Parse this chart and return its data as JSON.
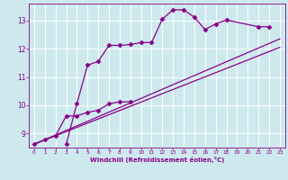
{
  "xlabel": "Windchill (Refroidissement éolien,°C)",
  "xlim": [
    -0.5,
    23.5
  ],
  "ylim": [
    8.5,
    13.6
  ],
  "yticks": [
    9,
    10,
    11,
    12,
    13
  ],
  "xticks": [
    0,
    1,
    2,
    3,
    4,
    5,
    6,
    7,
    8,
    9,
    10,
    11,
    12,
    13,
    14,
    15,
    16,
    17,
    18,
    19,
    20,
    21,
    22,
    23
  ],
  "background_color": "#cde9ee",
  "grid_color": "#ffffff",
  "line_color": "#880088",
  "line1_x": [
    0,
    1,
    2,
    3,
    4,
    5,
    6,
    7,
    8,
    9
  ],
  "line1_y": [
    8.62,
    8.78,
    8.92,
    9.62,
    9.62,
    9.75,
    9.82,
    10.05,
    10.12,
    10.12
  ],
  "line2_x": [
    3,
    4,
    5,
    6,
    7,
    8,
    9,
    10,
    11,
    12,
    13,
    14,
    15,
    16,
    17,
    18,
    21,
    22
  ],
  "line2_y": [
    8.62,
    10.05,
    11.42,
    11.55,
    12.12,
    12.12,
    12.15,
    12.22,
    12.22,
    13.05,
    13.38,
    13.38,
    13.12,
    12.68,
    12.88,
    13.02,
    12.78,
    12.78
  ],
  "line3_x": [
    0,
    23
  ],
  "line3_y": [
    8.62,
    12.35
  ],
  "line4_x": [
    0,
    23
  ],
  "line4_y": [
    8.62,
    12.05
  ],
  "marker": "D",
  "markersize": 2.5,
  "linewidth": 0.9
}
